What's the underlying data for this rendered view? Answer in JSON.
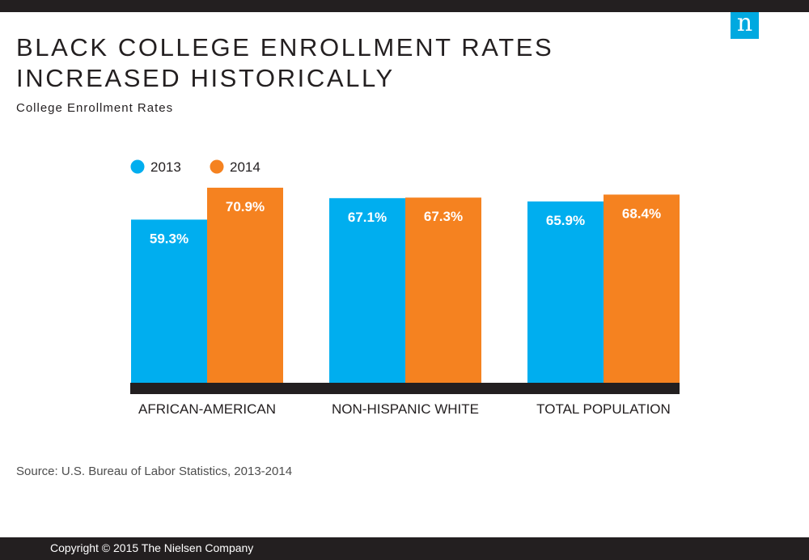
{
  "header": {
    "title": "BLACK COLLEGE ENROLLMENT RATES INCREASED HISTORICALLY",
    "subtitle": "College Enrollment Rates",
    "logo_letter": "n"
  },
  "footer": {
    "source": "Source: U.S. Bureau of Labor Statistics, 2013-2014",
    "copyright": "Copyright © 2015 The Nielsen Company"
  },
  "colors": {
    "series_2013": "#00aeef",
    "series_2014": "#f58220",
    "axis": "#231f20",
    "logo": "#00a9e0"
  },
  "chart_data": {
    "type": "bar",
    "title": "BLACK COLLEGE ENROLLMENT RATES INCREASED HISTORICALLY",
    "subtitle": "College Enrollment Rates",
    "categories": [
      "AFRICAN-AMERICAN",
      "NON-HISPANIC WHITE",
      "TOTAL POPULATION"
    ],
    "series": [
      {
        "name": "2013",
        "values": [
          59.3,
          67.1,
          65.9
        ],
        "labels": [
          "59.3%",
          "67.1%",
          "65.9%"
        ],
        "color": "#00aeef"
      },
      {
        "name": "2014",
        "values": [
          70.9,
          67.3,
          68.4
        ],
        "labels": [
          "70.9%",
          "67.3%",
          "68.4%"
        ],
        "color": "#f58220"
      }
    ],
    "ylim": [
      0,
      100
    ],
    "grid": false,
    "legend": "top-left",
    "xlabel": "",
    "ylabel": ""
  }
}
